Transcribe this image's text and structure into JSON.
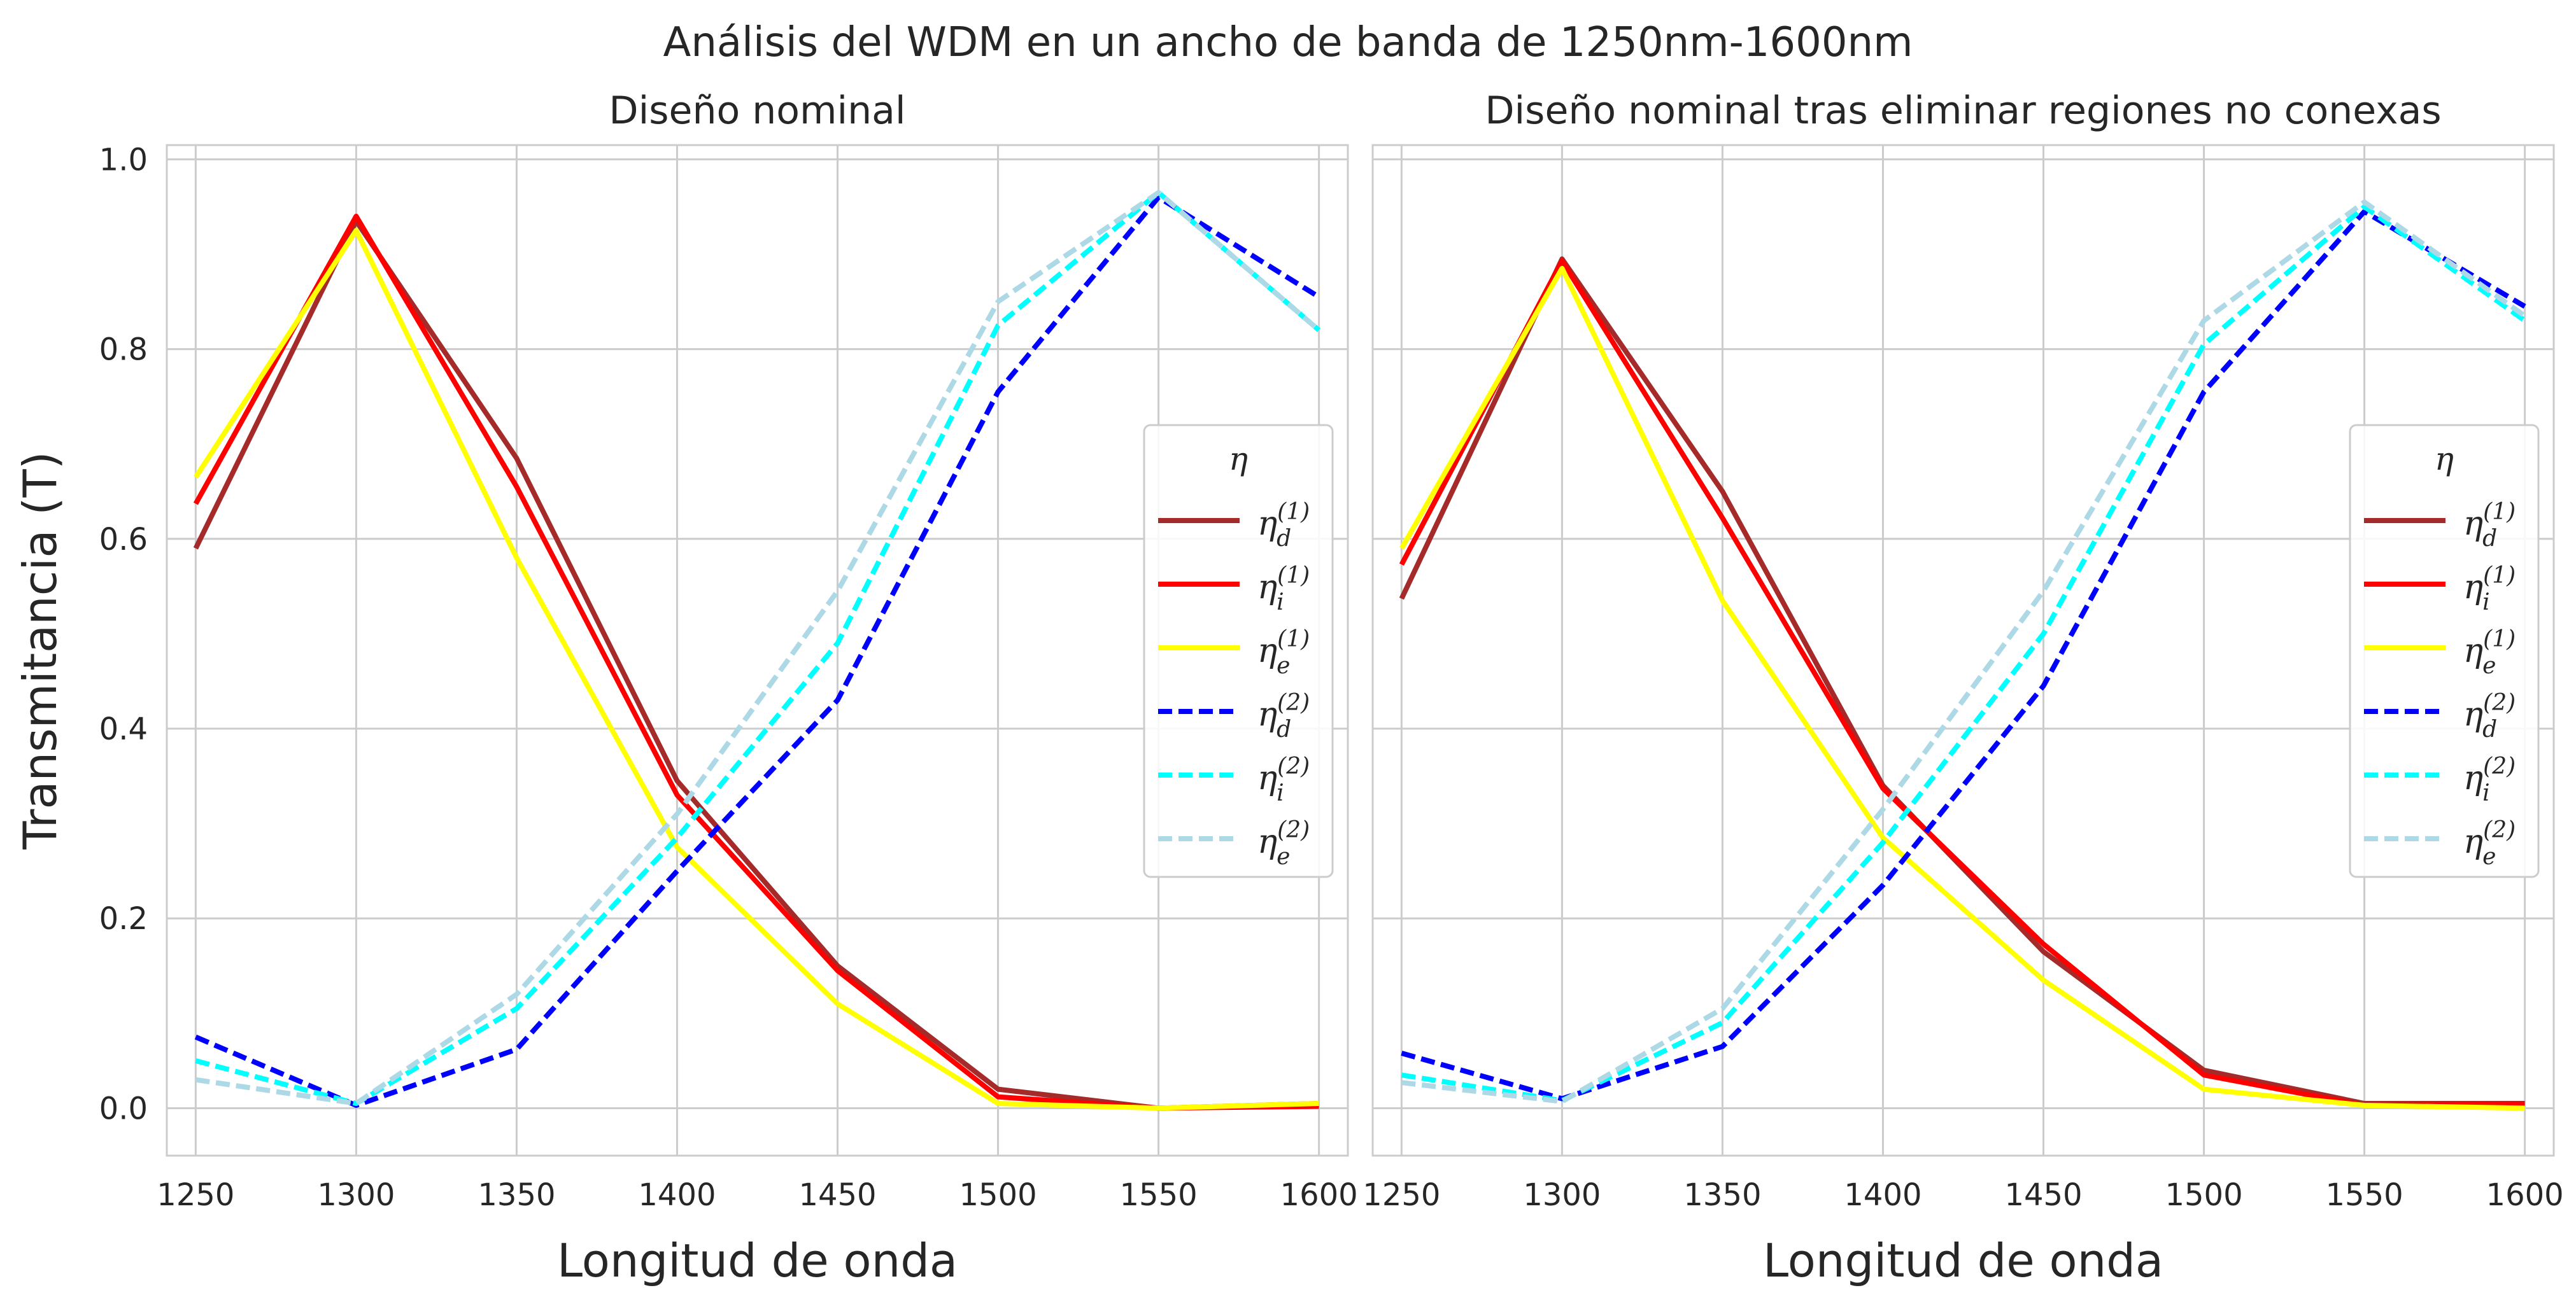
{
  "figure_title": "Análisis del WDM en un ancho de banda de 1250nm-1600nm",
  "chart_data": [
    {
      "type": "line",
      "title": "Diseño nominal",
      "xlabel": "Longitud de onda",
      "ylabel": "Transmitancia (T)",
      "x": [
        1250,
        1300,
        1350,
        1400,
        1450,
        1500,
        1550,
        1600
      ],
      "xticks": [
        "1250",
        "1300",
        "1350",
        "1400",
        "1450",
        "1500",
        "1550",
        "1600"
      ],
      "yticks": [
        "0.0",
        "0.2",
        "0.4",
        "0.6",
        "0.8",
        "1.0"
      ],
      "xlim": [
        1241,
        1609
      ],
      "ylim": [
        -0.05,
        1.015
      ],
      "grid": true,
      "legend": {
        "title": "η",
        "placement": "center-right"
      },
      "series": [
        {
          "name": "η_d^(1)",
          "base": "η",
          "sub": "d",
          "sup": "(1)",
          "color": "#a52a2a",
          "dash": "solid",
          "values": [
            0.59,
            0.935,
            0.685,
            0.345,
            0.15,
            0.02,
            0.0,
            0.005
          ]
        },
        {
          "name": "η_i^(1)",
          "base": "η",
          "sub": "i",
          "sup": "(1)",
          "color": "#ff0000",
          "dash": "solid",
          "values": [
            0.637,
            0.94,
            0.655,
            0.33,
            0.145,
            0.012,
            0.0,
            0.002
          ]
        },
        {
          "name": "η_e^(1)",
          "base": "η",
          "sub": "e",
          "sup": "(1)",
          "color": "#ffff00",
          "dash": "solid",
          "values": [
            0.665,
            0.925,
            0.58,
            0.275,
            0.11,
            0.005,
            0.0,
            0.005
          ]
        },
        {
          "name": "η_d^(2)",
          "base": "η",
          "sub": "d",
          "sup": "(2)",
          "color": "#0000ff",
          "dash": "dashed",
          "values": [
            0.075,
            0.003,
            0.062,
            0.25,
            0.43,
            0.755,
            0.96,
            0.855
          ]
        },
        {
          "name": "η_i^(2)",
          "base": "η",
          "sub": "i",
          "sup": "(2)",
          "color": "#00ffff",
          "dash": "dashed",
          "values": [
            0.05,
            0.005,
            0.105,
            0.285,
            0.49,
            0.825,
            0.965,
            0.82
          ]
        },
        {
          "name": "η_e^(2)",
          "base": "η",
          "sub": "e",
          "sup": "(2)",
          "color": "#add8e6",
          "dash": "dashed",
          "values": [
            0.03,
            0.005,
            0.12,
            0.31,
            0.545,
            0.85,
            0.965,
            0.82
          ]
        }
      ]
    },
    {
      "type": "line",
      "title": "Diseño nominal tras eliminar regiones no conexas",
      "xlabel": "Longitud de onda",
      "ylabel": "",
      "x": [
        1250,
        1300,
        1350,
        1400,
        1450,
        1500,
        1550,
        1600
      ],
      "xticks": [
        "1250",
        "1300",
        "1350",
        "1400",
        "1450",
        "1500",
        "1550",
        "1600"
      ],
      "yticks": [],
      "xlim": [
        1241,
        1609
      ],
      "ylim": [
        -0.05,
        1.015
      ],
      "grid": true,
      "legend": {
        "title": "η",
        "placement": "center-right"
      },
      "series": [
        {
          "name": "η_d^(1)",
          "base": "η",
          "sub": "d",
          "sup": "(1)",
          "color": "#a52a2a",
          "dash": "solid",
          "values": [
            0.537,
            0.895,
            0.65,
            0.34,
            0.165,
            0.04,
            0.005,
            0.005
          ]
        },
        {
          "name": "η_i^(1)",
          "base": "η",
          "sub": "i",
          "sup": "(1)",
          "color": "#ff0000",
          "dash": "solid",
          "values": [
            0.573,
            0.893,
            0.622,
            0.337,
            0.173,
            0.035,
            0.003,
            0.004
          ]
        },
        {
          "name": "η_e^(1)",
          "base": "η",
          "sub": "e",
          "sup": "(1)",
          "color": "#ffff00",
          "dash": "solid",
          "values": [
            0.59,
            0.885,
            0.535,
            0.285,
            0.135,
            0.02,
            0.003,
            0.0
          ]
        },
        {
          "name": "η_d^(2)",
          "base": "η",
          "sub": "d",
          "sup": "(2)",
          "color": "#0000ff",
          "dash": "dashed",
          "values": [
            0.058,
            0.01,
            0.065,
            0.235,
            0.445,
            0.755,
            0.945,
            0.845
          ]
        },
        {
          "name": "η_i^(2)",
          "base": "η",
          "sub": "i",
          "sup": "(2)",
          "color": "#00ffff",
          "dash": "dashed",
          "values": [
            0.035,
            0.008,
            0.09,
            0.28,
            0.5,
            0.805,
            0.95,
            0.83
          ]
        },
        {
          "name": "η_e^(2)",
          "base": "η",
          "sub": "e",
          "sup": "(2)",
          "color": "#add8e6",
          "dash": "dashed",
          "values": [
            0.027,
            0.007,
            0.105,
            0.315,
            0.545,
            0.83,
            0.955,
            0.835
          ]
        }
      ]
    }
  ]
}
